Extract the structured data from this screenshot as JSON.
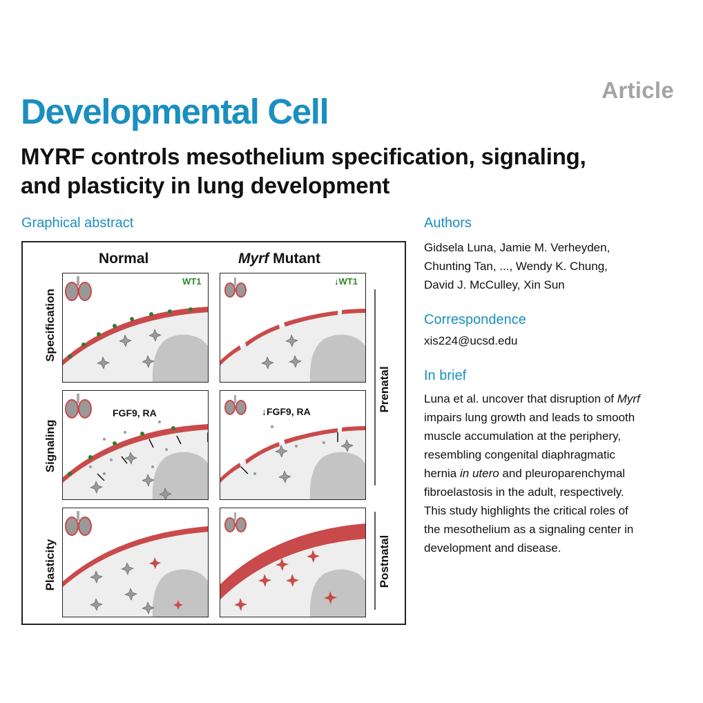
{
  "header": {
    "article_tag": "Article",
    "journal": "Developmental Cell",
    "title_line1": "MYRF controls mesothelium specification, signaling,",
    "title_line2": "and plasticity in lung development"
  },
  "graphical_abstract": {
    "heading": "Graphical abstract",
    "columns": {
      "normal": "Normal",
      "mutant_gene": "Myrf",
      "mutant_suffix": " Mutant"
    },
    "rows": {
      "specification": "Specification",
      "signaling": "Signaling",
      "plasticity": "Plasticity"
    },
    "phases": {
      "prenatal": "Prenatal",
      "postnatal": "Postnatal"
    },
    "markers": {
      "wt1_normal": "WT1",
      "wt1_mutant": "WT1",
      "down_arrow": "↓"
    },
    "signals": {
      "normal": "FGF9, RA",
      "mutant": "FGF9, RA"
    },
    "colors": {
      "mesothelium": "#c94a4a",
      "nucleus_green": "#2e7d2e",
      "airway_gray": "#c4c4c4",
      "background_gray": "#eeeeee"
    }
  },
  "authors": {
    "heading": "Authors",
    "line1": "Gidsela Luna, Jamie M. Verheyden,",
    "line2": "Chunting Tan, ..., Wendy K. Chung,",
    "line3": "David J. McCulley, Xin Sun"
  },
  "correspondence": {
    "heading": "Correspondence",
    "email": "xis224@ucsd.edu"
  },
  "in_brief": {
    "heading": "In brief",
    "line1_a": "Luna et al. uncover that disruption of ",
    "line1_gene": "Myrf",
    "line2": "impairs lung growth and leads to smooth",
    "line3": "muscle accumulation at the periphery,",
    "line4": "resembling congenital diaphragmatic",
    "line5_a": "hernia ",
    "line5_italic": "in utero",
    "line5_b": " and pleuroparenchymal",
    "line6": "fibroelastosis in the adult, respectively.",
    "line7": "This study highlights the critical roles of",
    "line8": "the mesothelium as a signaling center in",
    "line9": "development and disease."
  },
  "brand_color": "#1a8fc0",
  "tag_color": "#a3a3a3"
}
